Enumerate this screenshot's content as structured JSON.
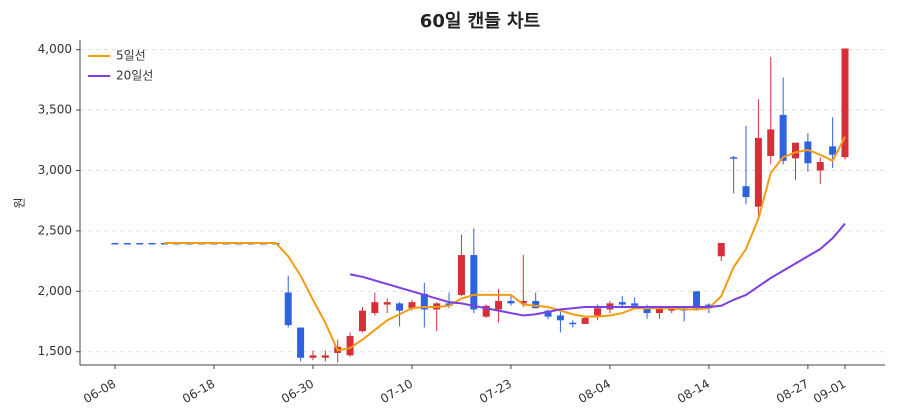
{
  "chart_data": {
    "type": "candlestick",
    "title": "60일 캔들 차트",
    "y_label": "원",
    "categories": [
      "06-08",
      null,
      null,
      null,
      null,
      null,
      null,
      null,
      "06-18",
      null,
      null,
      null,
      null,
      null,
      null,
      null,
      "06-30",
      null,
      null,
      null,
      null,
      null,
      null,
      null,
      "07-10",
      null,
      null,
      null,
      null,
      null,
      null,
      null,
      "07-23",
      null,
      null,
      null,
      null,
      null,
      null,
      null,
      "08-04",
      null,
      null,
      null,
      null,
      null,
      null,
      null,
      "08-14",
      null,
      null,
      null,
      null,
      null,
      null,
      null,
      "08-27",
      null,
      null,
      "09-01"
    ],
    "open": [
      2400,
      2400,
      2400,
      2400,
      2400,
      2400,
      2400,
      2400,
      2400,
      2400,
      2400,
      2400,
      2400,
      2400,
      1990,
      1700,
      1450,
      1450,
      1490,
      1470,
      1670,
      1820,
      1890,
      1900,
      1860,
      1980,
      1850,
      1900,
      1970,
      2300,
      1790,
      1850,
      1920,
      1900,
      1920,
      1840,
      1800,
      1740,
      1730,
      1800,
      1850,
      1910,
      1900,
      1860,
      1820,
      1840,
      1860,
      2000,
      1890,
      2290,
      3110,
      2870,
      2700,
      3120,
      3460,
      3100,
      3240,
      3000,
      3200,
      3110
    ],
    "high": [
      2400,
      2400,
      2400,
      2400,
      2400,
      2400,
      2400,
      2400,
      2400,
      2400,
      2400,
      2400,
      2400,
      2400,
      2130,
      1700,
      1510,
      1510,
      1600,
      1660,
      1870,
      1990,
      1940,
      1910,
      1930,
      2070,
      1910,
      1990,
      2470,
      2520,
      1890,
      2020,
      1960,
      2300,
      1990,
      1850,
      1830,
      1760,
      1790,
      1890,
      1920,
      1960,
      1950,
      1890,
      1870,
      1870,
      1880,
      2000,
      1900,
      2400,
      3120,
      3370,
      3590,
      3940,
      3770,
      3230,
      3310,
      3110,
      3440,
      4010
    ],
    "low": [
      2400,
      2400,
      2400,
      2400,
      2400,
      2400,
      2400,
      2400,
      2400,
      2400,
      2400,
      2400,
      2400,
      2400,
      1700,
      1420,
      1430,
      1420,
      1410,
      1460,
      1660,
      1800,
      1820,
      1710,
      1840,
      1700,
      1670,
      1860,
      1960,
      1820,
      1780,
      1740,
      1880,
      1870,
      1860,
      1770,
      1660,
      1700,
      1730,
      1760,
      1820,
      1860,
      1860,
      1770,
      1770,
      1820,
      1750,
      1840,
      1820,
      2250,
      2810,
      2720,
      2590,
      3050,
      3050,
      2920,
      2990,
      2890,
      3020,
      3090
    ],
    "close": [
      2400,
      2400,
      2400,
      2400,
      2400,
      2400,
      2400,
      2400,
      2400,
      2400,
      2400,
      2400,
      2400,
      2400,
      1720,
      1450,
      1470,
      1470,
      1540,
      1630,
      1840,
      1910,
      1910,
      1840,
      1910,
      1850,
      1900,
      1880,
      2300,
      1850,
      1880,
      1920,
      1900,
      1920,
      1860,
      1790,
      1760,
      1730,
      1780,
      1860,
      1900,
      1890,
      1880,
      1820,
      1860,
      1860,
      1840,
      1860,
      1860,
      2400,
      3100,
      2780,
      3270,
      3340,
      3080,
      3230,
      3060,
      3070,
      3130,
      4010
    ],
    "up_color": "#d62f3a",
    "down_color": "#2f62e0",
    "series": [
      {
        "name": "5일선",
        "color": "#f39c12",
        "values": [
          null,
          null,
          null,
          null,
          2400,
          2400,
          2400,
          2400,
          2400,
          2400,
          2400,
          2400,
          2400,
          2400,
          2290,
          2130,
          1930,
          1740,
          1510,
          1530,
          1600,
          1680,
          1760,
          1810,
          1860,
          1870,
          1870,
          1880,
          1940,
          1970,
          1970,
          1970,
          1970,
          1890,
          1880,
          1870,
          1840,
          1810,
          1790,
          1790,
          1800,
          1820,
          1860,
          1860,
          1860,
          1860,
          1850,
          1850,
          1860,
          1960,
          2200,
          2350,
          2600,
          2980,
          3110,
          3150,
          3170,
          3130,
          3080,
          3280
        ]
      },
      {
        "name": "20일선",
        "color": "#7b3fe4",
        "values": [
          null,
          null,
          null,
          null,
          null,
          null,
          null,
          null,
          null,
          null,
          null,
          null,
          null,
          null,
          null,
          null,
          null,
          null,
          null,
          2140,
          2120,
          2090,
          2060,
          2030,
          2000,
          1970,
          1940,
          1910,
          1900,
          1880,
          1860,
          1840,
          1820,
          1800,
          1810,
          1830,
          1850,
          1860,
          1870,
          1870,
          1870,
          1870,
          1870,
          1870,
          1870,
          1870,
          1870,
          1870,
          1870,
          1880,
          1930,
          1970,
          2040,
          2110,
          2170,
          2230,
          2290,
          2350,
          2440,
          2560
        ]
      }
    ],
    "ylim": [
      1390,
      4080
    ],
    "yticks": [
      {
        "value": 1500,
        "label": "1,500"
      },
      {
        "value": 2000,
        "label": "2,000"
      },
      {
        "value": 2500,
        "label": "2,500"
      },
      {
        "value": 3000,
        "label": "3,000"
      },
      {
        "value": 3500,
        "label": "3,500"
      },
      {
        "value": 4000,
        "label": "4,000"
      }
    ],
    "grid": true,
    "legend": "upper left"
  }
}
